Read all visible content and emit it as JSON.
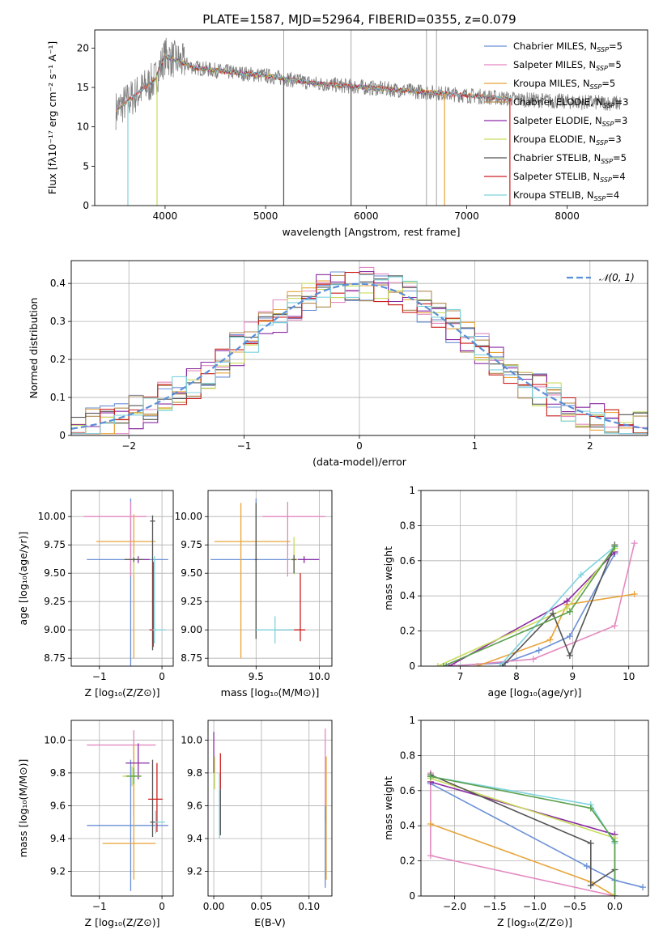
{
  "figure_title": "PLATE=1587, MJD=52964, FIBERID=0355, z=0.079",
  "legend_models": [
    {
      "label": "Chabrier MILES, N",
      "sub": "SSP",
      "tail": "=5",
      "color": "#6a8fd6"
    },
    {
      "label": "Salpeter MILES, N",
      "sub": "SSP",
      "tail": "=5",
      "color": "#e389c0"
    },
    {
      "label": "Kroupa MILES, N",
      "sub": "SSP",
      "tail": "=5",
      "color": "#e8a43a"
    },
    {
      "label": "Chabrier ELODIE, N",
      "sub": "SSP",
      "tail": "=3",
      "color": "#b08a50"
    },
    {
      "label": "Salpeter ELODIE, N",
      "sub": "SSP",
      "tail": "=3",
      "color": "#8a2aa3"
    },
    {
      "label": "Kroupa ELODIE, N",
      "sub": "SSP",
      "tail": "=3",
      "color": "#c8dc5a"
    },
    {
      "label": "Chabrier STELIB, N",
      "sub": "SSP",
      "tail": "=5",
      "color": "#555555"
    },
    {
      "label": "Salpeter STELIB, N",
      "sub": "SSP",
      "tail": "=4",
      "color": "#cc1f1f"
    },
    {
      "label": "Kroupa STELIB, N",
      "sub": "SSP",
      "tail": "=4",
      "color": "#7fd3de"
    }
  ],
  "chart_data": [
    {
      "id": "spectrum",
      "type": "line",
      "xlabel": "wavelength [Angstrom, rest frame]",
      "ylabel": "Flux [fλ10⁻¹⁷ erg cm⁻² s⁻¹ A⁻¹]",
      "xlim": [
        3300,
        8800
      ],
      "ylim": [
        0,
        22.3
      ],
      "xticks": [
        4000,
        5000,
        6000,
        7000,
        8000
      ],
      "yticks": [
        0,
        5,
        10,
        15,
        20
      ],
      "grid": false,
      "legend_position": "upper right",
      "data_color": "#808080",
      "spectrum_profile": {
        "x": [
          3500,
          3700,
          3900,
          4000,
          4100,
          4300,
          4600,
          5000,
          5500,
          6000,
          6500,
          7000,
          7500,
          8000,
          8500
        ],
        "y": [
          12,
          14,
          16,
          19,
          18.5,
          17.5,
          17,
          16.5,
          15.5,
          15,
          14.5,
          14,
          13.5,
          13.2,
          13
        ]
      },
      "noise_amplitude": 1.0,
      "dropouts_x": [
        3630,
        3920,
        5180,
        5850,
        6780,
        7430
      ],
      "spikes_x": [
        5180,
        5850,
        6600,
        6700
      ]
    },
    {
      "id": "residuals",
      "type": "histogram",
      "xlabel": "(data-model)/error",
      "ylabel": "Normed distribution",
      "xlim": [
        -2.5,
        2.5
      ],
      "ylim": [
        0,
        0.46
      ],
      "xticks": [
        -2,
        -1,
        0,
        1,
        2
      ],
      "yticks": [
        0.0,
        0.1,
        0.2,
        0.3,
        0.4
      ],
      "grid": true,
      "bin_width": 0.125,
      "reference_curve": {
        "label": "𝒩(0, 1)",
        "mean": 0,
        "sigma": 1,
        "color": "#5b8fd6",
        "style": "dashed"
      },
      "legend_position": "upper right"
    },
    {
      "id": "age_vs_Z",
      "type": "errorbar",
      "xlabel": "Z [log₁₀(Z/Z⊙)]",
      "ylabel": "age  [log₁₀(age/yr)]",
      "xlim": [
        -1.45,
        0.18
      ],
      "ylim": [
        8.68,
        10.23
      ],
      "xticks": [
        -1,
        0
      ],
      "yticks": [
        8.75,
        9.0,
        9.25,
        9.5,
        9.75,
        10.0
      ],
      "ytick_labels": [
        "8.75",
        "9.00",
        "9.25",
        "9.50",
        "9.75",
        "10.00"
      ],
      "grid": true,
      "points": [
        {
          "color": "#6a8fd6",
          "x": -0.5,
          "y": 9.62,
          "xerr": [
            0.7,
            0.6
          ],
          "yerr": [
            1.06,
            0.54
          ]
        },
        {
          "color": "#e389c0",
          "x": -0.5,
          "y": 10.0,
          "xerr": [
            0.75,
            0.25
          ],
          "yerr": [
            0.53,
            0.13
          ]
        },
        {
          "color": "#e8a43a",
          "x": -0.45,
          "y": 9.78,
          "xerr": [
            0.6,
            0.35
          ],
          "yerr": [
            1.03,
            0.24
          ]
        },
        {
          "color": "#8a2aa3",
          "x": -0.38,
          "y": 9.62,
          "xerr": [
            0.2,
            0.18
          ],
          "yerr": [
            0.03,
            0.03
          ]
        },
        {
          "color": "#c8dc5a",
          "x": -0.45,
          "y": 9.62,
          "xerr": [
            0.15,
            0.15
          ],
          "yerr": [
            0.13,
            0.05
          ]
        },
        {
          "color": "#555555",
          "x": -0.15,
          "y": 9.96,
          "xerr": [
            0.04,
            0.04
          ],
          "yerr": [
            1.14,
            0.05
          ]
        },
        {
          "color": "#cc1f1f",
          "x": -0.14,
          "y": 9.0,
          "xerr": [
            0.06,
            0.06
          ],
          "yerr": [
            0.15,
            0.6
          ]
        },
        {
          "color": "#7fd3de",
          "x": -0.12,
          "y": 9.0,
          "xerr": [
            0.03,
            0.18
          ],
          "yerr": [
            0.12,
            0.65
          ]
        },
        {
          "color": "#555555",
          "x": -0.45,
          "y": 9.62,
          "xerr": [
            0.15,
            0.15
          ],
          "yerr": [
            0.02,
            0.02
          ]
        }
      ]
    },
    {
      "id": "age_vs_mass",
      "type": "errorbar",
      "xlabel": "mass [log₁₀(M/M⊙)]",
      "xlim": [
        9.12,
        10.1
      ],
      "ylim": [
        8.68,
        10.23
      ],
      "xticks": [
        9.5,
        10.0
      ],
      "xtick_labels": [
        "9.5",
        "10.0"
      ],
      "yticks": [
        8.75,
        9.0,
        9.25,
        9.5,
        9.75,
        10.0
      ],
      "ytick_labels": [
        "8.75",
        "9.00",
        "9.25",
        "9.50",
        "9.75",
        "10.00"
      ],
      "grid": true,
      "points": [
        {
          "color": "#6a8fd6",
          "x": 9.5,
          "y": 9.62,
          "xerr": [
            0.36,
            0.5
          ],
          "yerr": [
            0.7,
            0.54
          ]
        },
        {
          "color": "#e389c0",
          "x": 9.75,
          "y": 10.0,
          "xerr": [
            0.2,
            0.3
          ],
          "yerr": [
            0.53,
            0.13
          ]
        },
        {
          "color": "#e8a43a",
          "x": 9.38,
          "y": 9.78,
          "xerr": [
            0.21,
            0.39
          ],
          "yerr": [
            1.03,
            0.34
          ]
        },
        {
          "color": "#8a2aa3",
          "x": 9.88,
          "y": 9.62,
          "xerr": [
            0.05,
            0.12
          ],
          "yerr": [
            0.03,
            0.03
          ]
        },
        {
          "color": "#c8dc5a",
          "x": 9.8,
          "y": 9.62,
          "xerr": [
            0.03,
            0.03
          ],
          "yerr": [
            0.13,
            0.2
          ]
        },
        {
          "color": "#555555",
          "x": 9.5,
          "y": 9.62,
          "xerr": [
            0.01,
            0.01
          ],
          "yerr": [
            0.7,
            0.5
          ]
        },
        {
          "color": "#cc1f1f",
          "x": 9.85,
          "y": 9.0,
          "xerr": [
            0.2,
            0.04
          ],
          "yerr": [
            0.1,
            0.5
          ]
        },
        {
          "color": "#7fd3de",
          "x": 9.65,
          "y": 9.0,
          "xerr": [
            0.15,
            0.15
          ],
          "yerr": [
            0.12,
            0.12
          ]
        },
        {
          "color": "#555555",
          "x": 9.8,
          "y": 9.62,
          "xerr": [
            0.02,
            0.02
          ],
          "yerr": [
            0.12,
            0.04
          ]
        }
      ]
    },
    {
      "id": "weight_vs_age",
      "type": "line",
      "xlabel": "age  [log₁₀(age/yr)]",
      "ylabel": "mass weight",
      "xlim": [
        6.3,
        10.35
      ],
      "ylim": [
        0,
        1
      ],
      "xticks": [
        7,
        8,
        9,
        10
      ],
      "yticks": [
        0.0,
        0.2,
        0.4,
        0.6,
        0.8,
        1.0
      ],
      "grid": true,
      "series": [
        {
          "color": "#6a8fd6",
          "x": [
            6.75,
            7.8,
            8.4,
            8.95,
            9.75
          ],
          "y": [
            0.0,
            0.02,
            0.09,
            0.17,
            0.64
          ]
        },
        {
          "color": "#e389c0",
          "x": [
            6.9,
            8.3,
            9.75,
            10.1
          ],
          "y": [
            0.0,
            0.04,
            0.23,
            0.7
          ]
        },
        {
          "color": "#e8a43a",
          "x": [
            7.3,
            8.6,
            8.9,
            10.1
          ],
          "y": [
            0.0,
            0.15,
            0.35,
            0.41
          ]
        },
        {
          "color": "#8a2aa3",
          "x": [
            6.8,
            8.9,
            9.75
          ],
          "y": [
            0.0,
            0.37,
            0.65
          ]
        },
        {
          "color": "#c8dc5a",
          "x": [
            6.6,
            8.9,
            9.75
          ],
          "y": [
            0.0,
            0.33,
            0.67
          ]
        },
        {
          "color": "#555555",
          "x": [
            7.75,
            8.65,
            8.95,
            9.75
          ],
          "y": [
            0.0,
            0.3,
            0.06,
            0.69
          ]
        },
        {
          "color": "#7fd3de",
          "x": [
            7.7,
            9.15,
            9.75
          ],
          "y": [
            0.0,
            0.52,
            0.68
          ]
        },
        {
          "color": "#5aa04a",
          "x": [
            6.7,
            8.95,
            9.75
          ],
          "y": [
            0.0,
            0.31,
            0.68
          ]
        }
      ]
    },
    {
      "id": "mass_vs_Z",
      "type": "errorbar",
      "xlabel": "Z [log₁₀(Z/Z⊙)]",
      "ylabel": "mass [log₁₀(M/M⊙)]",
      "xlim": [
        -1.45,
        0.18
      ],
      "ylim": [
        9.05,
        10.12
      ],
      "xticks": [
        -1,
        0
      ],
      "yticks": [
        9.2,
        9.4,
        9.6,
        9.8,
        10.0
      ],
      "ytick_labels": [
        "9.2",
        "9.4",
        "9.6",
        "9.8",
        "10.0"
      ],
      "grid": true,
      "points": [
        {
          "color": "#6a8fd6",
          "x": -0.5,
          "y": 9.48,
          "xerr": [
            0.7,
            0.6
          ],
          "yerr": [
            0.4,
            0.4
          ]
        },
        {
          "color": "#e389c0",
          "x": -0.45,
          "y": 9.97,
          "xerr": [
            0.75,
            0.35
          ],
          "yerr": [
            0.44,
            0.09
          ]
        },
        {
          "color": "#e8a43a",
          "x": -0.45,
          "y": 9.37,
          "xerr": [
            0.5,
            0.35
          ],
          "yerr": [
            0.22,
            0.6
          ]
        },
        {
          "color": "#8a2aa3",
          "x": -0.38,
          "y": 9.86,
          "xerr": [
            0.2,
            0.18
          ],
          "yerr": [
            0.1,
            0.12
          ]
        },
        {
          "color": "#c8dc5a",
          "x": -0.48,
          "y": 9.78,
          "xerr": [
            0.15,
            0.15
          ],
          "yerr": [
            0.06,
            0.06
          ]
        },
        {
          "color": "#555555",
          "x": -0.15,
          "y": 9.5,
          "xerr": [
            0.04,
            0.04
          ],
          "yerr": [
            0.09,
            0.38
          ]
        },
        {
          "color": "#cc1f1f",
          "x": -0.08,
          "y": 9.64,
          "xerr": [
            0.14,
            0.09
          ],
          "yerr": [
            0.2,
            0.22
          ]
        },
        {
          "color": "#7fd3de",
          "x": -0.1,
          "y": 9.5,
          "xerr": [
            0.02,
            0.15
          ],
          "yerr": [
            0.07,
            0.07
          ]
        },
        {
          "color": "#5aa04a",
          "x": -0.45,
          "y": 9.78,
          "xerr": [
            0.12,
            0.12
          ],
          "yerr": [
            0.05,
            0.05
          ]
        }
      ]
    },
    {
      "id": "mass_vs_ebv",
      "type": "errorbar",
      "xlabel": "E(B-V)",
      "xlim": [
        -0.006,
        0.124
      ],
      "ylim": [
        9.05,
        10.12
      ],
      "xticks": [
        0.0,
        0.05,
        0.1
      ],
      "xtick_labels": [
        "0.00",
        "0.05",
        "0.10"
      ],
      "yticks": [
        9.2,
        9.4,
        9.6,
        9.8,
        10.0
      ],
      "ytick_labels": [
        "9.2",
        "9.4",
        "9.6",
        "9.8",
        "10.0"
      ],
      "grid": true,
      "points": [
        {
          "color": "#8a2aa3",
          "x": 0.0,
          "y": 9.9,
          "xerr": [
            0,
            0
          ],
          "yerr": [
            0.1,
            0.15
          ]
        },
        {
          "color": "#c8dc5a",
          "x": 0.001,
          "y": 9.8,
          "xerr": [
            0,
            0
          ],
          "yerr": [
            0.1,
            0.1
          ]
        },
        {
          "color": "#cc1f1f",
          "x": 0.007,
          "y": 9.8,
          "xerr": [
            0,
            0
          ],
          "yerr": [
            0.1,
            0.12
          ]
        },
        {
          "color": "#7fd3de",
          "x": 0.006,
          "y": 9.6,
          "xerr": [
            0,
            0
          ],
          "yerr": [
            0.2,
            0.2
          ]
        },
        {
          "color": "#555555",
          "x": 0.007,
          "y": 9.6,
          "xerr": [
            0,
            0
          ],
          "yerr": [
            0.18,
            0.1
          ]
        },
        {
          "color": "#e389c0",
          "x": 0.117,
          "y": 9.9,
          "xerr": [
            0,
            0
          ],
          "yerr": [
            0.4,
            0.17
          ]
        },
        {
          "color": "#e8a43a",
          "x": 0.118,
          "y": 9.55,
          "xerr": [
            0,
            0
          ],
          "yerr": [
            0.4,
            0.35
          ]
        },
        {
          "color": "#6a8fd6",
          "x": 0.117,
          "y": 9.35,
          "xerr": [
            0,
            0
          ],
          "yerr": [
            0.25,
            0.25
          ]
        }
      ]
    },
    {
      "id": "weight_vs_Z",
      "type": "line",
      "xlabel": "Z [log₁₀(Z/Z⊙)]",
      "ylabel": "mass weight",
      "xlim": [
        -2.42,
        0.42
      ],
      "ylim": [
        0,
        1
      ],
      "xticks": [
        -2.0,
        -1.5,
        -1.0,
        -0.5,
        0.0
      ],
      "xtick_labels": [
        "−2.0",
        "−1.5",
        "−1.0",
        "−0.5",
        "0.0"
      ],
      "yticks": [
        0.0,
        0.2,
        0.4,
        0.6,
        0.8,
        1.0
      ],
      "grid": true,
      "series": [
        {
          "color": "#6a8fd6",
          "x": [
            -2.3,
            -0.35,
            0.0,
            0.35
          ],
          "y": [
            0.64,
            0.17,
            0.09,
            0.05
          ]
        },
        {
          "color": "#e389c0",
          "x": [
            -2.3,
            -2.3,
            0.0
          ],
          "y": [
            0.7,
            0.23,
            0.0
          ]
        },
        {
          "color": "#e8a43a",
          "x": [
            -2.3,
            -0.3,
            0.0
          ],
          "y": [
            0.41,
            0.08,
            0.0
          ]
        },
        {
          "color": "#8a2aa3",
          "x": [
            -2.3,
            0.0,
            0.0
          ],
          "y": [
            0.65,
            0.35,
            0.0
          ]
        },
        {
          "color": "#c8dc5a",
          "x": [
            -2.3,
            0.0,
            0.0
          ],
          "y": [
            0.67,
            0.33,
            0.0
          ]
        },
        {
          "color": "#555555",
          "x": [
            -2.3,
            -0.3,
            -0.3,
            0.0,
            0.0
          ],
          "y": [
            0.69,
            0.3,
            0.06,
            0.15,
            0.0
          ]
        },
        {
          "color": "#7fd3de",
          "x": [
            -2.3,
            -0.3,
            0.0,
            0.0
          ],
          "y": [
            0.68,
            0.52,
            0.3,
            0.0
          ]
        },
        {
          "color": "#5aa04a",
          "x": [
            -2.3,
            -0.3,
            0.0,
            0.0
          ],
          "y": [
            0.68,
            0.5,
            0.31,
            0.0
          ]
        }
      ]
    }
  ]
}
